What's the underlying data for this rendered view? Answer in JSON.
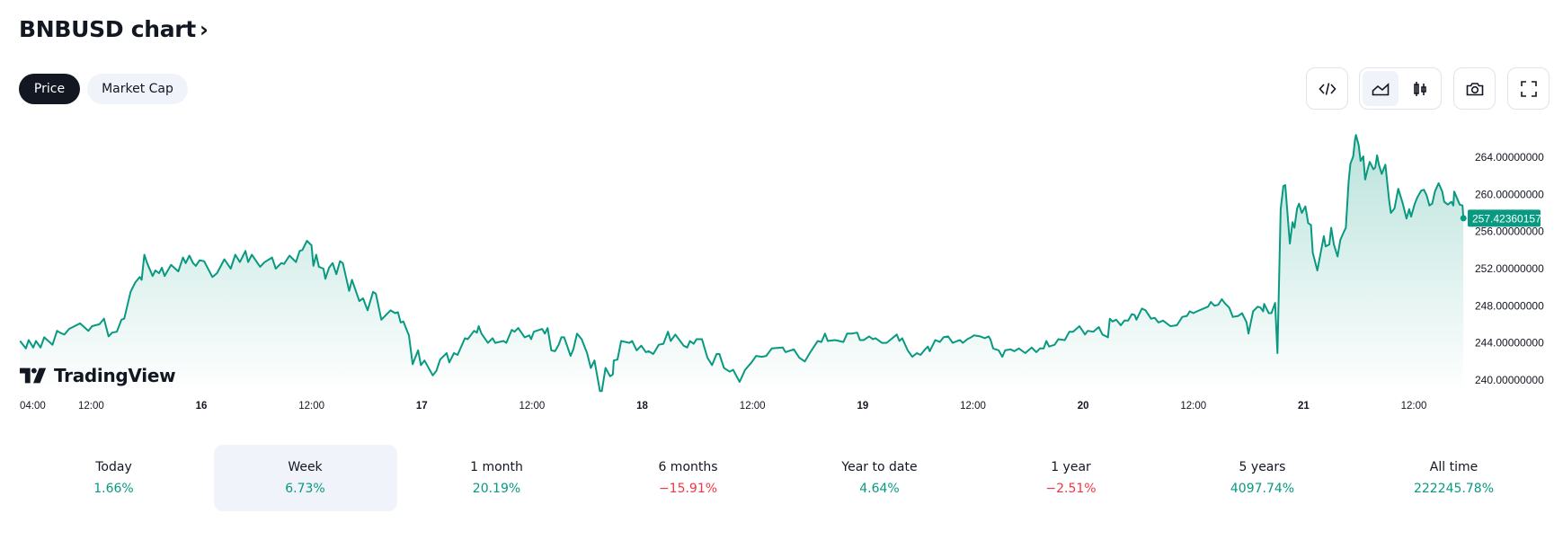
{
  "header": {
    "title": "BNBUSD chart",
    "chevron": "›"
  },
  "tabs": [
    {
      "label": "Price",
      "active": true
    },
    {
      "label": "Market Cap",
      "active": false
    }
  ],
  "toolbar": {
    "buttons": [
      {
        "icon": "code-embed-icon"
      },
      {
        "icon": "area-chart-icon",
        "active": true
      },
      {
        "icon": "candlestick-icon"
      },
      {
        "icon": "camera-snapshot-icon"
      },
      {
        "icon": "fullscreen-icon"
      }
    ]
  },
  "watermark": "TradingView",
  "colors": {
    "line": "#089981",
    "positive": "#089981",
    "negative": "#f23645",
    "text": "#131722"
  },
  "chart_data": {
    "type": "area",
    "symbol": "BNBUSD",
    "last_value_label": "257.42360157",
    "ylim": [
      238.5,
      267
    ],
    "y_ticks": [
      "240.00000000",
      "244.00000000",
      "248.00000000",
      "252.00000000",
      "256.00000000",
      "260.00000000",
      "264.00000000"
    ],
    "y_tick_values": [
      240,
      244,
      248,
      252,
      256,
      260,
      264
    ],
    "x_ticks": [
      {
        "hours": 4,
        "label": "04:00"
      },
      {
        "hours": 12,
        "label": "12:00"
      },
      {
        "hours": 24,
        "label": "16"
      },
      {
        "hours": 36,
        "label": "12:00"
      },
      {
        "hours": 48,
        "label": "17"
      },
      {
        "hours": 60,
        "label": "12:00"
      },
      {
        "hours": 72,
        "label": "18"
      },
      {
        "hours": 84,
        "label": "12:00"
      },
      {
        "hours": 96,
        "label": "19"
      },
      {
        "hours": 108,
        "label": "12:00"
      },
      {
        "hours": 120,
        "label": "20"
      },
      {
        "hours": 132,
        "label": "12:00"
      },
      {
        "hours": 144,
        "label": "21"
      },
      {
        "hours": 156,
        "label": "12:00"
      }
    ],
    "points": [
      [
        4.26,
        244.2
      ],
      [
        4.9,
        243.4
      ],
      [
        5.2,
        244.3
      ],
      [
        5.7,
        243.5
      ],
      [
        6.0,
        244.2
      ],
      [
        6.5,
        243.5
      ],
      [
        6.9,
        244.6
      ],
      [
        7.8,
        243.8
      ],
      [
        8.3,
        245.3
      ],
      [
        8.6,
        245.1
      ],
      [
        9.1,
        244.9
      ],
      [
        9.6,
        245.5
      ],
      [
        10.8,
        246.1
      ],
      [
        11.7,
        245.3
      ],
      [
        12.1,
        245.8
      ],
      [
        12.9,
        246.0
      ],
      [
        13.4,
        246.6
      ],
      [
        13.9,
        244.7
      ],
      [
        14.3,
        245.1
      ],
      [
        14.8,
        245.2
      ],
      [
        15.3,
        246.5
      ],
      [
        15.6,
        246.6
      ],
      [
        16.3,
        249.5
      ],
      [
        16.8,
        250.5
      ],
      [
        17.3,
        251.1
      ],
      [
        17.5,
        250.8
      ],
      [
        17.8,
        253.5
      ],
      [
        18.1,
        252.6
      ],
      [
        18.7,
        251.2
      ],
      [
        19.0,
        251.8
      ],
      [
        19.4,
        251.5
      ],
      [
        19.7,
        252.1
      ],
      [
        20.0,
        251.2
      ],
      [
        20.7,
        252.4
      ],
      [
        21.5,
        251.7
      ],
      [
        22.0,
        253.2
      ],
      [
        22.3,
        252.6
      ],
      [
        22.7,
        253.4
      ],
      [
        23.1,
        252.6
      ],
      [
        23.4,
        252.3
      ],
      [
        23.8,
        252.9
      ],
      [
        24.3,
        252.8
      ],
      [
        25.2,
        251.1
      ],
      [
        25.7,
        251.5
      ],
      [
        26.5,
        253.0
      ],
      [
        27.2,
        252.0
      ],
      [
        27.7,
        253.5
      ],
      [
        28.2,
        252.7
      ],
      [
        28.8,
        253.9
      ],
      [
        29.1,
        252.7
      ],
      [
        29.5,
        253.5
      ],
      [
        30.4,
        252.2
      ],
      [
        30.9,
        252.7
      ],
      [
        31.7,
        253.2
      ],
      [
        32.1,
        252.0
      ],
      [
        32.7,
        252.6
      ],
      [
        33.0,
        252.5
      ],
      [
        33.6,
        253.4
      ],
      [
        34.3,
        252.7
      ],
      [
        34.7,
        253.9
      ],
      [
        35.0,
        254.0
      ],
      [
        35.5,
        255.0
      ],
      [
        36.0,
        254.5
      ],
      [
        36.2,
        252.3
      ],
      [
        36.5,
        253.5
      ],
      [
        36.8,
        252.2
      ],
      [
        37.3,
        252.0
      ],
      [
        37.5,
        250.9
      ],
      [
        37.9,
        252.1
      ],
      [
        38.3,
        252.6
      ],
      [
        38.7,
        251.4
      ],
      [
        39.1,
        252.8
      ],
      [
        39.4,
        252.6
      ],
      [
        40.1,
        249.6
      ],
      [
        40.4,
        250.8
      ],
      [
        41.2,
        248.5
      ],
      [
        41.6,
        248.8
      ],
      [
        42.1,
        247.5
      ],
      [
        42.7,
        249.5
      ],
      [
        43.0,
        249.3
      ],
      [
        43.6,
        246.5
      ],
      [
        44.6,
        247.5
      ],
      [
        45.1,
        247.2
      ],
      [
        45.4,
        247.3
      ],
      [
        45.7,
        246.2
      ],
      [
        46.0,
        246.3
      ],
      [
        46.4,
        245.3
      ],
      [
        46.6,
        244.8
      ],
      [
        47.0,
        241.7
      ],
      [
        47.6,
        243.2
      ],
      [
        47.9,
        241.6
      ],
      [
        48.3,
        242.1
      ],
      [
        49.2,
        240.5
      ],
      [
        49.6,
        241.0
      ],
      [
        50.0,
        242.2
      ],
      [
        50.7,
        242.9
      ],
      [
        51.0,
        241.9
      ],
      [
        51.5,
        242.9
      ],
      [
        51.9,
        242.7
      ],
      [
        52.7,
        244.5
      ],
      [
        53.0,
        244.4
      ],
      [
        53.7,
        245.3
      ],
      [
        54.0,
        245.1
      ],
      [
        54.2,
        245.8
      ],
      [
        54.5,
        245.0
      ],
      [
        55.2,
        244.0
      ],
      [
        55.7,
        244.5
      ],
      [
        56.0,
        244.0
      ],
      [
        56.9,
        244.2
      ],
      [
        57.2,
        244.0
      ],
      [
        57.8,
        245.4
      ],
      [
        58.1,
        245.2
      ],
      [
        58.5,
        245.6
      ],
      [
        59.2,
        244.6
      ],
      [
        59.7,
        244.8
      ],
      [
        59.9,
        244.4
      ],
      [
        60.2,
        245.2
      ],
      [
        61.1,
        245.5
      ],
      [
        61.4,
        245.0
      ],
      [
        61.7,
        245.6
      ],
      [
        62.1,
        243.2
      ],
      [
        62.5,
        243.1
      ],
      [
        62.9,
        243.8
      ],
      [
        63.2,
        244.6
      ],
      [
        63.5,
        244.6
      ],
      [
        64.2,
        242.6
      ],
      [
        64.5,
        243.3
      ],
      [
        64.9,
        245.0
      ],
      [
        65.4,
        244.4
      ],
      [
        66.0,
        242.9
      ],
      [
        66.4,
        241.3
      ],
      [
        66.8,
        242.1
      ],
      [
        67.4,
        238.8
      ],
      [
        67.6,
        238.8
      ],
      [
        68.0,
        241.3
      ],
      [
        68.5,
        240.4
      ],
      [
        68.8,
        240.6
      ],
      [
        68.9,
        242.1
      ],
      [
        69.3,
        242.2
      ],
      [
        69.7,
        244.2
      ],
      [
        70.6,
        244.0
      ],
      [
        70.9,
        244.2
      ],
      [
        71.4,
        243.2
      ],
      [
        71.9,
        243.7
      ],
      [
        72.4,
        243.0
      ],
      [
        72.7,
        243.1
      ],
      [
        73.2,
        242.8
      ],
      [
        73.8,
        243.8
      ],
      [
        74.3,
        243.9
      ],
      [
        74.8,
        245.2
      ],
      [
        75.1,
        244.2
      ],
      [
        75.6,
        244.9
      ],
      [
        76.5,
        243.7
      ],
      [
        76.9,
        243.5
      ],
      [
        77.2,
        244.2
      ],
      [
        77.6,
        243.9
      ],
      [
        77.9,
        244.4
      ],
      [
        78.5,
        244.4
      ],
      [
        79.1,
        242.4
      ],
      [
        79.6,
        241.6
      ],
      [
        80.1,
        242.8
      ],
      [
        80.4,
        242.8
      ],
      [
        80.9,
        241.3
      ],
      [
        81.5,
        240.9
      ],
      [
        81.9,
        241.1
      ],
      [
        82.6,
        239.8
      ],
      [
        83.2,
        241.1
      ],
      [
        83.9,
        241.9
      ],
      [
        84.4,
        242.6
      ],
      [
        85.0,
        242.5
      ],
      [
        85.5,
        242.6
      ],
      [
        86.1,
        243.4
      ],
      [
        87.3,
        243.5
      ],
      [
        87.6,
        243.0
      ],
      [
        88.5,
        243.3
      ],
      [
        89.1,
        242.4
      ],
      [
        89.7,
        242.0
      ],
      [
        90.3,
        243.0
      ],
      [
        91.1,
        244.2
      ],
      [
        91.5,
        244.1
      ],
      [
        91.9,
        245.0
      ],
      [
        92.2,
        244.2
      ],
      [
        93.0,
        244.3
      ],
      [
        93.9,
        244.1
      ],
      [
        94.3,
        245.0
      ],
      [
        94.8,
        245.0
      ],
      [
        95.4,
        245.1
      ],
      [
        95.7,
        244.3
      ],
      [
        96.1,
        244.3
      ],
      [
        96.7,
        244.7
      ],
      [
        97.1,
        244.4
      ],
      [
        97.4,
        244.5
      ],
      [
        98.1,
        244.0
      ],
      [
        98.6,
        244.0
      ],
      [
        99.1,
        244.4
      ],
      [
        99.7,
        244.9
      ],
      [
        100.0,
        244.2
      ],
      [
        100.3,
        244.5
      ],
      [
        100.9,
        243.2
      ],
      [
        101.4,
        242.5
      ],
      [
        101.9,
        242.9
      ],
      [
        102.3,
        242.7
      ],
      [
        102.8,
        243.3
      ],
      [
        103.1,
        243.6
      ],
      [
        103.3,
        243.1
      ],
      [
        103.9,
        244.3
      ],
      [
        104.4,
        244.1
      ],
      [
        104.8,
        244.6
      ],
      [
        105.3,
        244.7
      ],
      [
        105.8,
        244.0
      ],
      [
        106.3,
        244.2
      ],
      [
        106.6,
        244.3
      ],
      [
        106.9,
        244.0
      ],
      [
        107.4,
        244.4
      ],
      [
        107.8,
        244.6
      ],
      [
        108.1,
        244.8
      ],
      [
        108.8,
        244.7
      ],
      [
        109.3,
        244.5
      ],
      [
        109.7,
        244.7
      ],
      [
        109.9,
        244.4
      ],
      [
        110.2,
        243.4
      ],
      [
        110.8,
        243.2
      ],
      [
        111.2,
        242.5
      ],
      [
        111.5,
        243.2
      ],
      [
        112.1,
        243.3
      ],
      [
        112.5,
        243.1
      ],
      [
        113.0,
        243.4
      ],
      [
        113.7,
        242.9
      ],
      [
        114.4,
        243.5
      ],
      [
        114.9,
        243.0
      ],
      [
        115.3,
        243.4
      ],
      [
        115.7,
        243.4
      ],
      [
        116.0,
        244.2
      ],
      [
        116.3,
        243.6
      ],
      [
        116.9,
        243.8
      ],
      [
        117.3,
        244.4
      ],
      [
        118.0,
        244.3
      ],
      [
        118.5,
        245.2
      ],
      [
        118.9,
        245.2
      ],
      [
        119.6,
        245.8
      ],
      [
        120.2,
        244.9
      ],
      [
        120.5,
        245.3
      ],
      [
        121.1,
        245.2
      ],
      [
        121.7,
        245.7
      ],
      [
        122.1,
        244.9
      ],
      [
        122.7,
        244.6
      ],
      [
        122.9,
        246.6
      ],
      [
        123.2,
        246.3
      ],
      [
        123.6,
        246.5
      ],
      [
        124.1,
        245.9
      ],
      [
        124.5,
        246.4
      ],
      [
        124.9,
        246.4
      ],
      [
        125.3,
        247.1
      ],
      [
        125.6,
        247.0
      ],
      [
        125.8,
        246.5
      ],
      [
        126.4,
        247.7
      ],
      [
        126.8,
        247.5
      ],
      [
        127.4,
        246.6
      ],
      [
        127.8,
        246.7
      ],
      [
        128.2,
        246.2
      ],
      [
        128.7,
        246.4
      ],
      [
        129.5,
        245.8
      ],
      [
        130.2,
        245.9
      ],
      [
        130.8,
        246.8
      ],
      [
        131.3,
        246.9
      ],
      [
        131.6,
        247.4
      ],
      [
        132.0,
        247.2
      ],
      [
        132.4,
        247.4
      ],
      [
        133.1,
        247.7
      ],
      [
        133.6,
        247.9
      ],
      [
        133.9,
        248.4
      ],
      [
        134.3,
        248.0
      ],
      [
        134.7,
        248.1
      ],
      [
        135.1,
        248.7
      ],
      [
        135.4,
        248.3
      ],
      [
        135.9,
        247.8
      ],
      [
        136.3,
        246.8
      ],
      [
        136.9,
        246.9
      ],
      [
        137.3,
        247.2
      ],
      [
        137.8,
        246.2
      ],
      [
        138.0,
        245.0
      ],
      [
        138.5,
        247.4
      ],
      [
        139.0,
        247.9
      ],
      [
        139.3,
        247.8
      ],
      [
        139.6,
        247.4
      ],
      [
        139.7,
        248.2
      ],
      [
        140.2,
        247.2
      ],
      [
        140.5,
        247.2
      ],
      [
        140.9,
        248.3
      ],
      [
        141.15,
        242.9
      ],
      [
        141.5,
        258.4
      ],
      [
        141.8,
        260.9
      ],
      [
        142.0,
        261.0
      ],
      [
        142.5,
        254.7
      ],
      [
        142.8,
        257.0
      ],
      [
        143.0,
        256.4
      ],
      [
        143.3,
        258.5
      ],
      [
        143.5,
        259.0
      ],
      [
        143.8,
        258.0
      ],
      [
        144.2,
        258.7
      ],
      [
        144.5,
        256.9
      ],
      [
        144.8,
        256.7
      ],
      [
        145.0,
        253.7
      ],
      [
        145.5,
        251.8
      ],
      [
        146.2,
        255.5
      ],
      [
        146.4,
        254.4
      ],
      [
        146.8,
        254.6
      ],
      [
        147.0,
        256.4
      ],
      [
        147.3,
        254.6
      ],
      [
        147.7,
        253.3
      ],
      [
        148.0,
        255.1
      ],
      [
        148.4,
        256.0
      ],
      [
        148.6,
        256.4
      ],
      [
        148.9,
        261.4
      ],
      [
        149.1,
        263.3
      ],
      [
        149.4,
        264.1
      ],
      [
        149.6,
        265.9
      ],
      [
        149.7,
        266.4
      ],
      [
        150.0,
        265.3
      ],
      [
        150.2,
        263.6
      ],
      [
        150.5,
        264.1
      ],
      [
        150.7,
        261.6
      ],
      [
        151.0,
        262.8
      ],
      [
        151.2,
        263.5
      ],
      [
        151.6,
        262.7
      ],
      [
        151.8,
        262.9
      ],
      [
        152.0,
        264.2
      ],
      [
        152.2,
        263.2
      ],
      [
        152.5,
        262.2
      ],
      [
        152.9,
        263.2
      ],
      [
        153.3,
        259.5
      ],
      [
        153.5,
        258.0
      ],
      [
        153.9,
        258.5
      ],
      [
        154.3,
        260.6
      ],
      [
        154.8,
        259.0
      ],
      [
        155.2,
        257.4
      ],
      [
        155.5,
        258.4
      ],
      [
        155.7,
        257.6
      ],
      [
        156.1,
        259.0
      ],
      [
        156.4,
        259.7
      ],
      [
        156.8,
        260.4
      ],
      [
        157.1,
        260.5
      ],
      [
        157.4,
        259.9
      ],
      [
        157.7,
        258.8
      ],
      [
        158.0,
        259.0
      ],
      [
        158.3,
        260.3
      ],
      [
        158.7,
        261.2
      ],
      [
        159.1,
        260.3
      ],
      [
        159.3,
        259.2
      ],
      [
        159.7,
        258.9
      ],
      [
        160.1,
        259.2
      ],
      [
        160.3,
        258.8
      ],
      [
        160.4,
        260.3
      ],
      [
        161.0,
        258.9
      ],
      [
        161.3,
        258.8
      ],
      [
        161.4,
        257.4236
      ]
    ]
  },
  "stats": [
    {
      "label": "Today",
      "value": "1.66%",
      "sign": "pos"
    },
    {
      "label": "Week",
      "value": "6.73%",
      "sign": "pos",
      "selected": true
    },
    {
      "label": "1 month",
      "value": "20.19%",
      "sign": "pos"
    },
    {
      "label": "6 months",
      "value": "−15.91%",
      "sign": "neg"
    },
    {
      "label": "Year to date",
      "value": "4.64%",
      "sign": "pos"
    },
    {
      "label": "1 year",
      "value": "−2.51%",
      "sign": "neg"
    },
    {
      "label": "5 years",
      "value": "4097.74%",
      "sign": "pos"
    },
    {
      "label": "All time",
      "value": "222245.78%",
      "sign": "pos"
    }
  ]
}
